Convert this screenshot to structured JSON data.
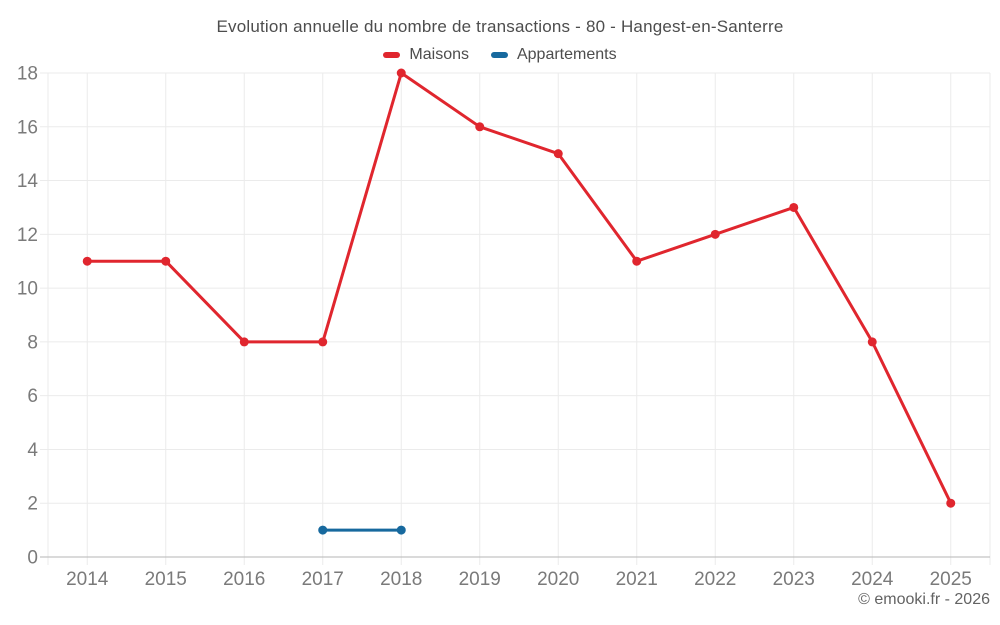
{
  "chart_data": {
    "type": "line",
    "title": "Evolution annuelle du nombre de transactions - 80 - Hangest-en-Santerre",
    "categories": [
      "2014",
      "2015",
      "2016",
      "2017",
      "2018",
      "2019",
      "2020",
      "2021",
      "2022",
      "2023",
      "2024",
      "2025"
    ],
    "series": [
      {
        "name": "Maisons",
        "color": "#e0262e",
        "values": [
          11,
          11,
          8,
          8,
          18,
          16,
          15,
          11,
          12,
          13,
          8,
          2
        ]
      },
      {
        "name": "Appartements",
        "color": "#17699e",
        "values": [
          null,
          null,
          null,
          1,
          1,
          null,
          null,
          null,
          null,
          null,
          null,
          null
        ]
      }
    ],
    "xlabel": "",
    "ylabel": "",
    "ylim": [
      0,
      18
    ],
    "ytick_step": 2,
    "grid": true,
    "legend_position": "top"
  },
  "footer": {
    "credit": "© emooki.fr - 2026"
  },
  "style": {
    "background": "#ffffff",
    "grid_color": "#ebebeb",
    "axis_color": "#b6b6b6",
    "tick_label_color": "#7a7a7a",
    "title_color": "#4d4d4d",
    "legend_text_color": "#4d4d4d",
    "footer_color": "#636363"
  }
}
